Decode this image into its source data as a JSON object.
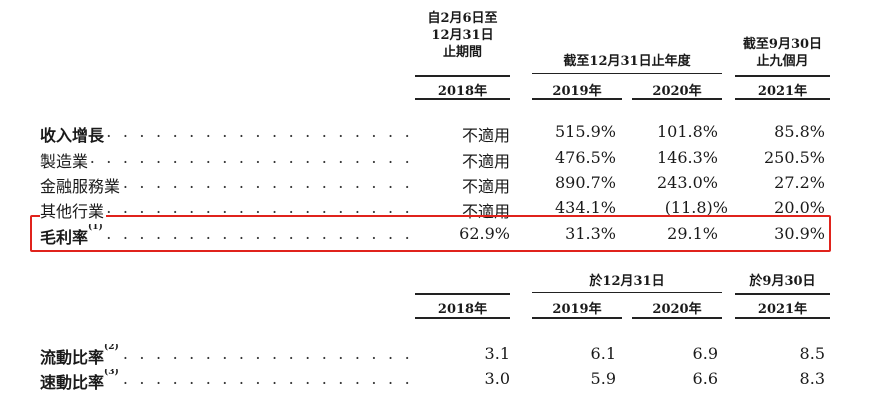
{
  "table1": {
    "headers": {
      "col1": "自2月6日至\n12月31日\n止期間",
      "col23": "截至12月31日止年度",
      "col4": "截至9月30日\n止九個月"
    },
    "years": [
      "2018年",
      "2019年",
      "2020年",
      "2021年"
    ],
    "rows": [
      {
        "label": "收入增長",
        "values": [
          "不適用",
          "515.9%",
          "101.8%",
          "85.8%"
        ]
      },
      {
        "label": "製造業",
        "values": [
          "不適用",
          "476.5%",
          "146.3%",
          "250.5%"
        ]
      },
      {
        "label": "金融服務業",
        "values": [
          "不適用",
          "890.7%",
          "243.0%",
          "27.2%"
        ]
      },
      {
        "label": "其他行業",
        "values": [
          "不適用",
          "434.1%",
          "(11.8)%",
          "20.0%"
        ]
      },
      {
        "label": "毛利率",
        "sup": "(1)",
        "values": [
          "62.9%",
          "31.3%",
          "29.1%",
          "30.9%"
        ]
      }
    ]
  },
  "table2": {
    "headers": {
      "col23": "於12月31日",
      "col4": "於9月30日"
    },
    "years": [
      "2018年",
      "2019年",
      "2020年",
      "2021年"
    ],
    "rows": [
      {
        "label": "流動比率",
        "sup": "(2)",
        "values": [
          "3.1",
          "6.1",
          "6.9",
          "8.5"
        ]
      },
      {
        "label": "速動比率",
        "sup": "(3)",
        "values": [
          "3.0",
          "5.9",
          "6.6",
          "8.3"
        ]
      }
    ]
  },
  "colors": {
    "highlight": "#e0231c"
  }
}
